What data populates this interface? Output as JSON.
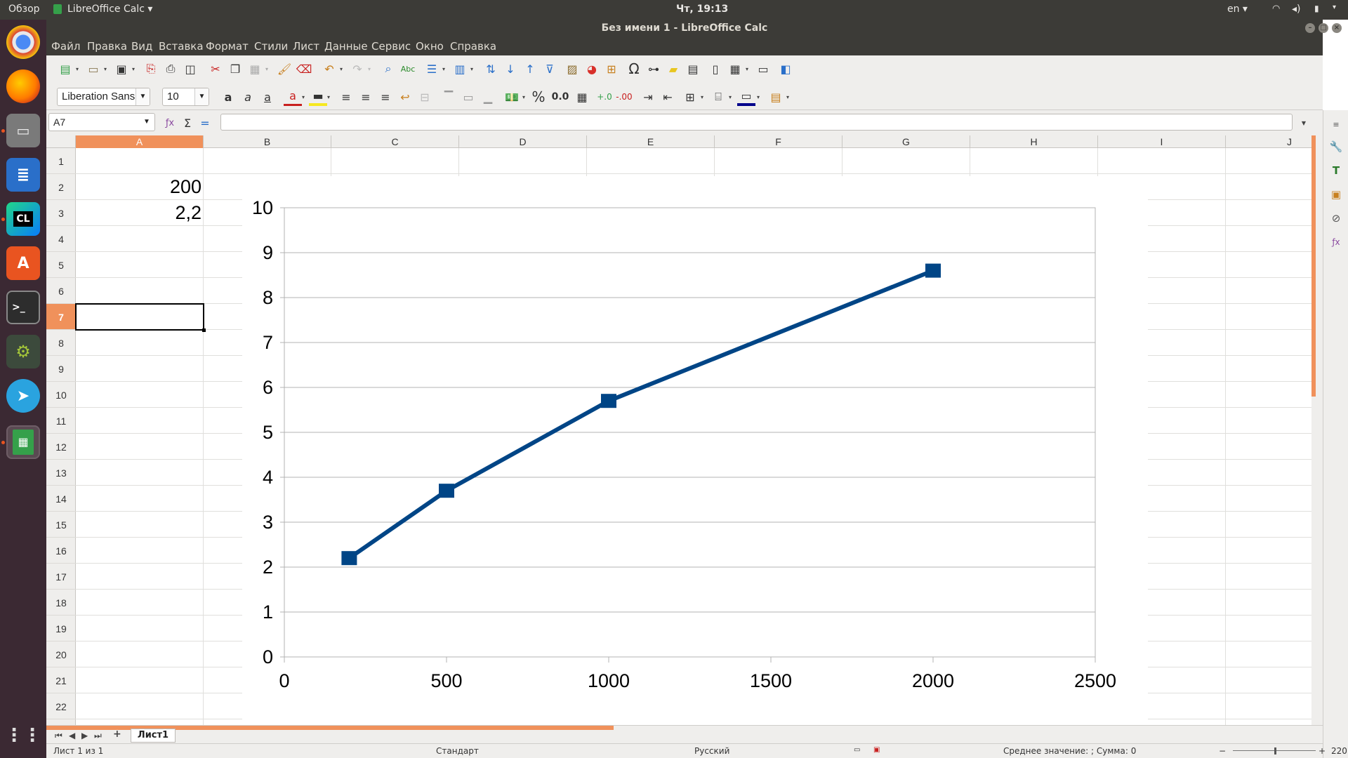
{
  "topbar": {
    "overview": "Обзор",
    "app": "LibreOffice Calc ▾",
    "clock": "Чт, 19:13",
    "lang": "en ▾"
  },
  "window": {
    "title": "Без имени 1 - LibreOffice Calc"
  },
  "menu": [
    "Файл",
    "Правка",
    "Вид",
    "Вставка",
    "Формат",
    "Стили",
    "Лист",
    "Данные",
    "Сервис",
    "Окно",
    "Справка"
  ],
  "toolbar": {
    "font_name": "Liberation Sans",
    "font_size": "10",
    "percent": "%",
    "decimal": "0.0"
  },
  "formula": {
    "name_box": "A7",
    "value": ""
  },
  "columns": [
    "A",
    "B",
    "C",
    "D",
    "E",
    "F",
    "G",
    "H",
    "I",
    "J"
  ],
  "rows": [
    "1",
    "2",
    "3",
    "4",
    "5",
    "6",
    "7",
    "8",
    "9",
    "10",
    "11",
    "12",
    "13",
    "14",
    "15",
    "16",
    "17",
    "18",
    "19",
    "20",
    "21",
    "22"
  ],
  "cells": {
    "A2": "200",
    "A3": "2,2"
  },
  "selected": {
    "cell": "A7",
    "column": "A",
    "row": "7"
  },
  "sheet_tab": "Лист1",
  "status": {
    "sheet": "Лист 1 из 1",
    "style": "Стандарт",
    "language": "Русский",
    "sum": "Среднее значение: ; Сумма: 0",
    "zoom": "220 %"
  },
  "colors": {
    "series": "#004586",
    "accent": "#f0915b",
    "chrome": "#3c3b37",
    "launcher": "#3b2933"
  },
  "chart_data": {
    "type": "line",
    "title": "",
    "xlabel": "",
    "ylabel": "",
    "x": [
      200,
      500,
      1000,
      2000
    ],
    "series": [
      {
        "values": [
          2.2,
          3.7,
          5.7,
          8.6
        ]
      }
    ],
    "xlim": [
      0,
      2500
    ],
    "ylim": [
      0,
      10
    ],
    "x_ticks": [
      "0",
      "500",
      "1000",
      "1500",
      "2000",
      "2500"
    ],
    "y_ticks": [
      "0",
      "1",
      "2",
      "3",
      "4",
      "5",
      "6",
      "7",
      "8",
      "9",
      "10"
    ],
    "marker": "square",
    "grid": "horizontal",
    "legend": "none"
  }
}
